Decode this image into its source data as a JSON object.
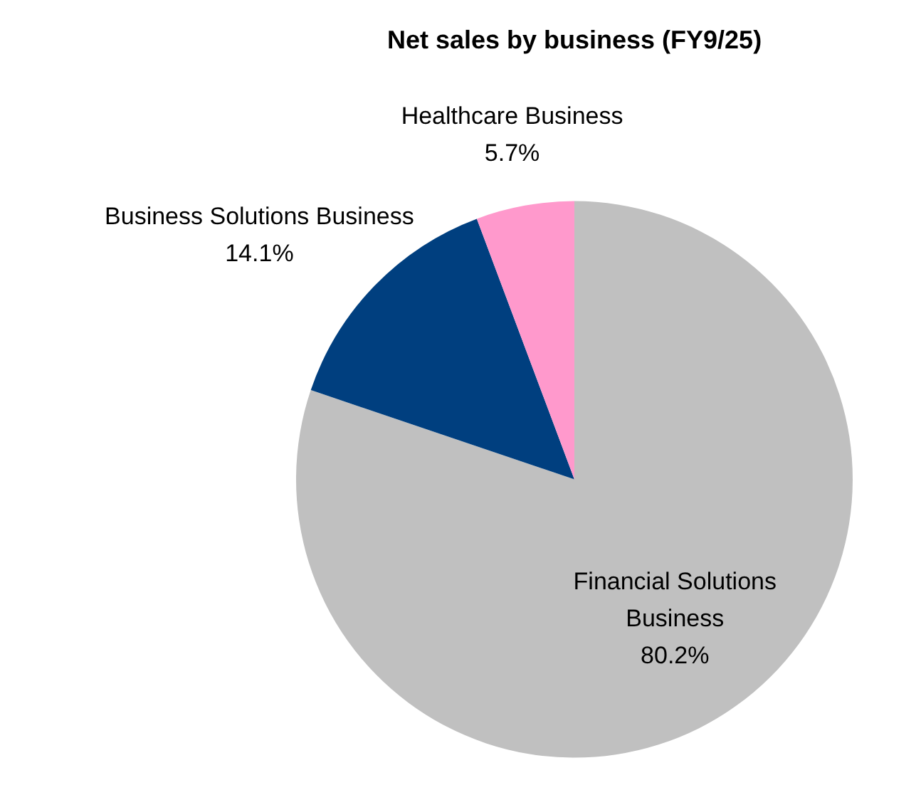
{
  "chart_data": {
    "type": "pie",
    "title": "Net sales by business (FY9/25)",
    "categories": [
      "Financial Solutions Business",
      "Business Solutions Business",
      "Healthcare Business"
    ],
    "values": [
      80.2,
      14.1,
      5.7
    ],
    "value_labels": [
      "80.2%",
      "14.1%",
      "5.7%"
    ],
    "colors": [
      "#c0c0c0",
      "#003f7f",
      "#ff99cc"
    ],
    "legend": false
  }
}
